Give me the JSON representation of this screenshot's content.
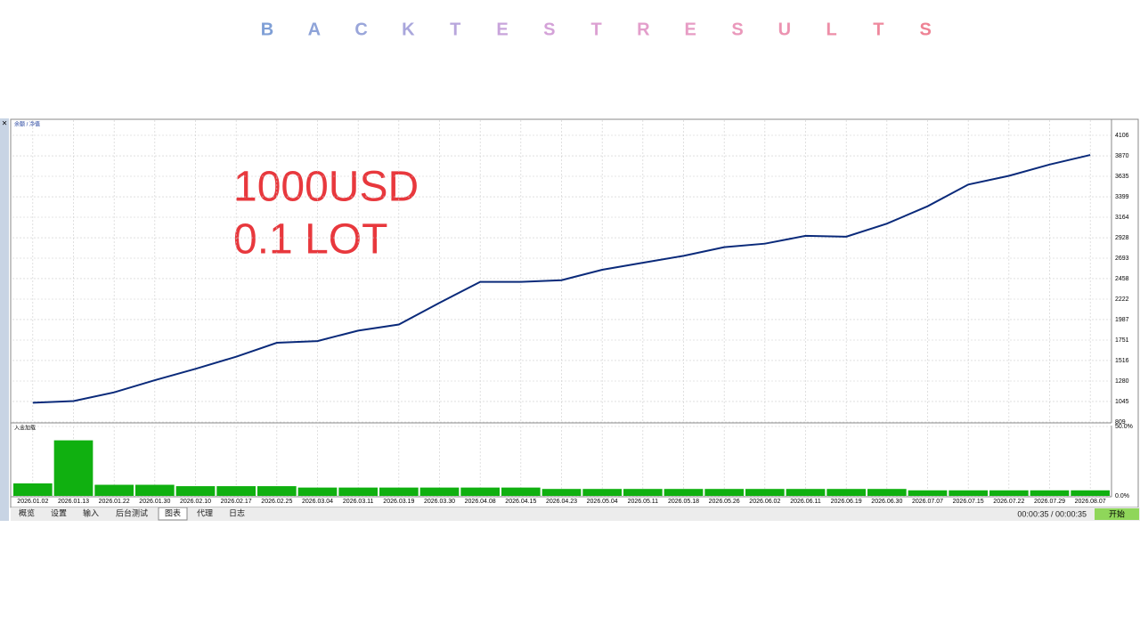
{
  "title": "BACKTESTRESULTS",
  "overlay": [
    "1000USD",
    "0.1 LOT"
  ],
  "tabs": [
    "概览",
    "设置",
    "输入",
    "后台测试",
    "图表",
    "代理",
    "日志"
  ],
  "active_tab": 4,
  "status": "00:00:35 / 00:00:35",
  "button": "开始",
  "chart_data": [
    {
      "type": "line",
      "legend": "余额 / 净值",
      "color": "#0a2a7a",
      "grid": true,
      "categories": [
        "2026.01.02",
        "2026.01.13",
        "2026.01.22",
        "2026.01.30",
        "2026.02.10",
        "2026.02.17",
        "2026.02.25",
        "2026.03.04",
        "2026.03.11",
        "2026.03.19",
        "2026.03.30",
        "2026.04.08",
        "2026.04.15",
        "2026.04.23",
        "2026.05.04",
        "2026.05.11",
        "2026.05.18",
        "2026.05.26",
        "2026.06.02",
        "2026.06.11",
        "2026.06.19",
        "2026.06.30",
        "2026.07.07",
        "2026.07.15",
        "2026.07.22",
        "2026.07.29",
        "2026.08.07"
      ],
      "values": [
        1030,
        1050,
        1150,
        1290,
        1420,
        1560,
        1720,
        1740,
        1860,
        1930,
        2180,
        2420,
        2420,
        2440,
        2560,
        2640,
        2720,
        2820,
        2860,
        2950,
        2940,
        3090,
        3290,
        3540,
        3640,
        3770,
        3880
      ],
      "ylim": [
        809,
        4280
      ],
      "yticks": [
        809,
        1045,
        1280,
        1516,
        1751,
        1987,
        2222,
        2458,
        2693,
        2928,
        3164,
        3399,
        3635,
        3870,
        4106
      ]
    },
    {
      "type": "bar",
      "legend": "入金加载",
      "color": "#10b010",
      "grid": true,
      "values": [
        9,
        40,
        8,
        8,
        7,
        7,
        7,
        6,
        6,
        6,
        6,
        6,
        6,
        5,
        5,
        5,
        5,
        5,
        5,
        5,
        5,
        5,
        4,
        4,
        4,
        4,
        4
      ],
      "ylim": [
        0,
        50
      ],
      "yticks": [
        {
          "value": 50,
          "label": "50.0%"
        },
        {
          "value": 0,
          "label": "0.0%"
        }
      ]
    }
  ]
}
